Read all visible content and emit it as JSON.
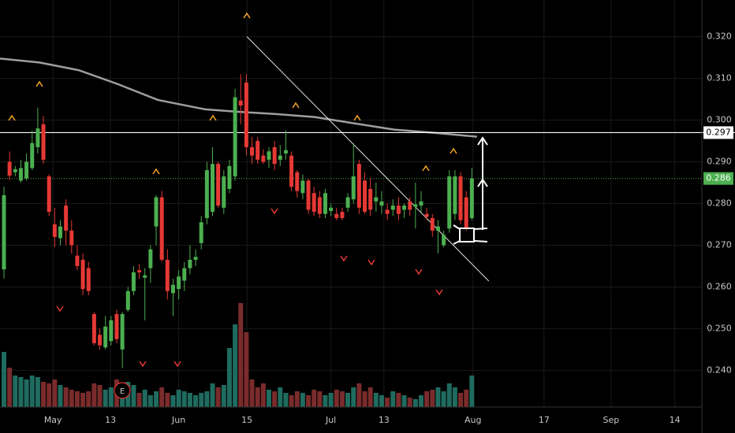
{
  "chart_data": {
    "type": "candlestick",
    "open": [
      0.2642,
      0.29,
      0.2875,
      0.2855,
      0.286,
      0.2885,
      0.2935,
      0.299,
      0.2865,
      0.275,
      0.2717,
      0.2795,
      0.2735,
      0.2675,
      0.2665,
      0.2645,
      0.2535,
      0.2485,
      0.2455,
      0.247,
      0.2535,
      0.245,
      0.2545,
      0.259,
      0.264,
      0.2622,
      0.2645,
      0.2745,
      0.2815,
      0.2665,
      0.2585,
      0.2595,
      0.2615,
      0.2645,
      0.2665,
      0.2705,
      0.2765,
      0.278,
      0.2895,
      0.279,
      0.2835,
      0.2865,
      0.3047,
      0.309,
      0.2935,
      0.295,
      0.2915,
      0.2905,
      0.2935,
      0.2905,
      0.292,
      0.2915,
      0.2875,
      0.2825,
      0.2855,
      0.2825,
      0.2815,
      0.2775,
      0.2782,
      0.2775,
      0.278,
      0.279,
      0.281,
      0.2895,
      0.2855,
      0.2835,
      0.2805,
      0.2795,
      0.2785,
      0.2785,
      0.2795,
      0.2785,
      0.2805,
      0.2792,
      0.2795,
      0.2775,
      0.2765,
      0.2735,
      0.27,
      0.274,
      0.2775,
      0.2865,
      0.2815,
      0.2765
    ],
    "high": [
      0.284,
      0.2925,
      0.289,
      0.2905,
      0.292,
      0.2975,
      0.303,
      0.301,
      0.287,
      0.279,
      0.276,
      0.281,
      0.276,
      0.27,
      0.268,
      0.266,
      0.254,
      0.25,
      0.253,
      0.253,
      0.2545,
      0.254,
      0.26,
      0.265,
      0.2655,
      0.2645,
      0.27,
      0.282,
      0.283,
      0.269,
      0.262,
      0.264,
      0.266,
      0.27,
      0.269,
      0.277,
      0.29,
      0.2935,
      0.29,
      0.288,
      0.2905,
      0.3075,
      0.311,
      0.311,
      0.296,
      0.296,
      0.293,
      0.2935,
      0.295,
      0.294,
      0.2975,
      0.2925,
      0.288,
      0.287,
      0.286,
      0.284,
      0.283,
      0.2835,
      0.28,
      0.279,
      0.279,
      0.2825,
      0.2945,
      0.2905,
      0.2875,
      0.286,
      0.285,
      0.283,
      0.28,
      0.281,
      0.2815,
      0.28,
      0.2815,
      0.285,
      0.283,
      0.279,
      0.2775,
      0.276,
      0.2735,
      0.288,
      0.288,
      0.2875,
      0.283,
      0.2885
    ],
    "low": [
      0.262,
      0.2855,
      0.2865,
      0.285,
      0.2855,
      0.288,
      0.292,
      0.2895,
      0.277,
      0.2695,
      0.27,
      0.27,
      0.268,
      0.264,
      0.258,
      0.258,
      0.246,
      0.245,
      0.245,
      0.246,
      0.2465,
      0.2405,
      0.254,
      0.258,
      0.262,
      0.252,
      0.261,
      0.27,
      0.266,
      0.257,
      0.253,
      0.257,
      0.259,
      0.263,
      0.265,
      0.269,
      0.275,
      0.277,
      0.279,
      0.2775,
      0.2825,
      0.2855,
      0.299,
      0.2915,
      0.2895,
      0.2895,
      0.2895,
      0.2885,
      0.288,
      0.289,
      0.2905,
      0.283,
      0.2815,
      0.281,
      0.2775,
      0.277,
      0.2765,
      0.2765,
      0.277,
      0.276,
      0.276,
      0.278,
      0.28,
      0.2775,
      0.2775,
      0.277,
      0.278,
      0.2775,
      0.276,
      0.277,
      0.276,
      0.2765,
      0.277,
      0.274,
      0.278,
      0.276,
      0.272,
      0.268,
      0.2695,
      0.273,
      0.276,
      0.275,
      0.2735,
      0.276
    ],
    "close": [
      0.282,
      0.2867,
      0.2882,
      0.2885,
      0.29,
      0.2945,
      0.298,
      0.2905,
      0.278,
      0.272,
      0.2745,
      0.2735,
      0.27,
      0.265,
      0.2595,
      0.259,
      0.2465,
      0.246,
      0.2505,
      0.252,
      0.2475,
      0.2535,
      0.259,
      0.2635,
      0.2635,
      0.2628,
      0.269,
      0.2815,
      0.2665,
      0.259,
      0.2605,
      0.2625,
      0.2645,
      0.2665,
      0.2672,
      0.2755,
      0.288,
      0.2895,
      0.2795,
      0.2865,
      0.289,
      0.3055,
      0.3035,
      0.2935,
      0.2915,
      0.2905,
      0.29,
      0.2925,
      0.2895,
      0.2915,
      0.2928,
      0.284,
      0.283,
      0.2855,
      0.2785,
      0.278,
      0.2775,
      0.2825,
      0.279,
      0.2765,
      0.2765,
      0.2815,
      0.2865,
      0.279,
      0.278,
      0.2785,
      0.2815,
      0.2805,
      0.2775,
      0.2795,
      0.2775,
      0.2795,
      0.2785,
      0.2798,
      0.2805,
      0.2768,
      0.2735,
      0.2745,
      0.2725,
      0.2865,
      0.2865,
      0.276,
      0.274,
      0.286
    ],
    "volume": [
      70,
      50,
      40,
      38,
      35,
      40,
      38,
      32,
      30,
      35,
      28,
      25,
      22,
      20,
      18,
      20,
      30,
      28,
      22,
      25,
      35,
      25,
      32,
      28,
      18,
      22,
      15,
      20,
      25,
      18,
      15,
      22,
      20,
      18,
      15,
      18,
      20,
      30,
      25,
      28,
      75,
      105,
      132,
      95,
      35,
      25,
      30,
      22,
      20,
      25,
      18,
      15,
      20,
      18,
      15,
      22,
      20,
      15,
      18,
      22,
      20,
      18,
      25,
      30,
      20,
      25,
      18,
      15,
      12,
      20,
      18,
      15,
      12,
      10,
      15,
      20,
      22,
      25,
      20,
      30,
      25,
      18,
      22,
      40
    ],
    "up_color": "#4caf50",
    "down_color": "#e53935",
    "moving_average": {
      "color": "#9e9e9e",
      "x": [
        -0.7,
        6.3,
        13.3,
        20.3,
        27.3,
        35.7,
        41.3,
        48.3,
        55.2,
        62.2,
        69.2,
        76.2,
        83.9
      ],
      "values": [
        0.31476,
        0.31382,
        0.31195,
        0.30858,
        0.30483,
        0.30258,
        0.30202,
        0.30146,
        0.30071,
        0.29921,
        0.29772,
        0.29697,
        0.29603
      ]
    },
    "trendline": {
      "x": [
        43.1,
        86.0
      ],
      "values": [
        0.32,
        0.2614
      ]
    },
    "horizontal_line": 0.297,
    "last_price": 0.286,
    "earnings_label": "E",
    "ylim": [
      0.2312,
      0.3288
    ],
    "xlim": [
      -0.7,
      123.8
    ],
    "yticks": [
      {
        "value": 0.24,
        "label": "0.240"
      },
      {
        "value": 0.25,
        "label": "0.250"
      },
      {
        "value": 0.26,
        "label": "0.260"
      },
      {
        "value": 0.27,
        "label": "0.270"
      },
      {
        "value": 0.28,
        "label": "0.280"
      },
      {
        "value": 0.29,
        "label": "0.290"
      },
      {
        "value": 0.3,
        "label": "0.300"
      },
      {
        "value": 0.31,
        "label": "0.310"
      },
      {
        "value": 0.32,
        "label": "0.320"
      }
    ],
    "xticks": [
      {
        "value": 8.7,
        "label": "May"
      },
      {
        "value": 18.9,
        "label": "13"
      },
      {
        "value": 31.0,
        "label": "Jun"
      },
      {
        "value": 43.1,
        "label": "15"
      },
      {
        "value": 58.0,
        "label": "Jul"
      },
      {
        "value": 67.4,
        "label": "13"
      },
      {
        "value": 83.2,
        "label": "Aug"
      },
      {
        "value": 95.8,
        "label": "17"
      },
      {
        "value": 107.7,
        "label": "Sep"
      },
      {
        "value": 119.0,
        "label": "14"
      }
    ],
    "grid": true
  }
}
